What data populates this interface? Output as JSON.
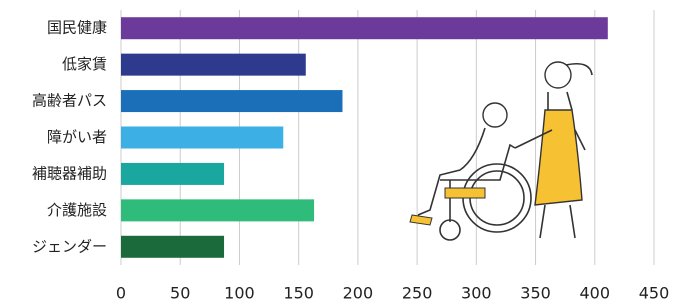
{
  "chart_data": {
    "type": "bar",
    "orientation": "horizontal",
    "categories": [
      "国民健康",
      "低家賃",
      "高齢者パス",
      "障がい者",
      "補聴器補助",
      "介護施設",
      "ジェンダー"
    ],
    "values": [
      411,
      156,
      187,
      137,
      87,
      163,
      87
    ],
    "colors": [
      "#6b3a9b",
      "#2e3a8e",
      "#1b6fb8",
      "#3cafe4",
      "#1aa79f",
      "#2fbb79",
      "#1b6a3b"
    ],
    "xlim": [
      0,
      450
    ],
    "xticks": [
      0,
      50,
      100,
      150,
      200,
      250,
      300,
      350,
      400,
      450
    ],
    "grid": true
  }
}
